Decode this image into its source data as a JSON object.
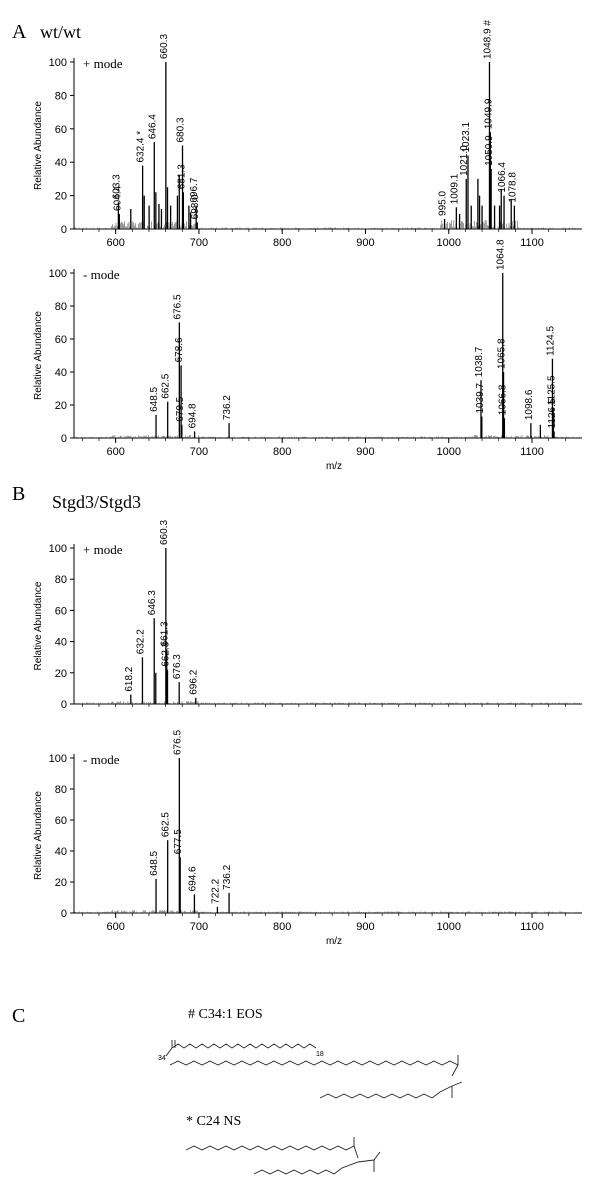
{
  "panels": {
    "a": {
      "letter": "A",
      "title": "wt/wt"
    },
    "b": {
      "letter": "B",
      "title": "Stgd3/Stgd3"
    },
    "c": {
      "letter": "C"
    }
  },
  "structures": {
    "eos_label": "# C34:1 EOS",
    "ns_label": "* C24 NS",
    "c18_sub": "18",
    "c34_sub": "34"
  },
  "chart_data": [
    {
      "type": "line",
      "panel": "A",
      "mode_label": "+ mode",
      "ylabel": "Relative Abundance",
      "xlabel": "",
      "xlim": [
        550,
        1160
      ],
      "ylim": [
        0,
        100
      ],
      "yticks": [
        0,
        20,
        40,
        60,
        80,
        100
      ],
      "xticks": [
        600,
        700,
        800,
        900,
        1000,
        1100
      ],
      "peaks": [
        {
          "mz": 603.3,
          "ab": 16,
          "label": "603.3"
        },
        {
          "mz": 604.4,
          "ab": 9,
          "label": "604.4"
        },
        {
          "mz": 618.2,
          "ab": 12
        },
        {
          "mz": 632.4,
          "ab": 38,
          "label": "632.4 *"
        },
        {
          "mz": 634.3,
          "ab": 20
        },
        {
          "mz": 640.2,
          "ab": 14
        },
        {
          "mz": 646.4,
          "ab": 52,
          "label": "646.4"
        },
        {
          "mz": 648.3,
          "ab": 22
        },
        {
          "mz": 652.0,
          "ab": 15
        },
        {
          "mz": 655.0,
          "ab": 12
        },
        {
          "mz": 660.3,
          "ab": 100,
          "label": "660.3"
        },
        {
          "mz": 662.3,
          "ab": 25
        },
        {
          "mz": 666.0,
          "ab": 14
        },
        {
          "mz": 674.2,
          "ab": 20
        },
        {
          "mz": 676.4,
          "ab": 32
        },
        {
          "mz": 680.3,
          "ab": 50,
          "label": "680.3"
        },
        {
          "mz": 681.3,
          "ab": 22,
          "label": "681.3"
        },
        {
          "mz": 688.0,
          "ab": 14
        },
        {
          "mz": 690.0,
          "ab": 10
        },
        {
          "mz": 696.7,
          "ab": 14,
          "label": "696.7"
        },
        {
          "mz": 698.0,
          "ab": 4,
          "label": "698.0"
        },
        {
          "mz": 995.0,
          "ab": 6,
          "label": "995.0"
        },
        {
          "mz": 1009.1,
          "ab": 13,
          "label": "1009.1"
        },
        {
          "mz": 1013.0,
          "ab": 9
        },
        {
          "mz": 1021.0,
          "ab": 30,
          "label": "1021.0"
        },
        {
          "mz": 1023.1,
          "ab": 44,
          "label": "1023.1"
        },
        {
          "mz": 1027.0,
          "ab": 14
        },
        {
          "mz": 1035.0,
          "ab": 30
        },
        {
          "mz": 1037.0,
          "ab": 20
        },
        {
          "mz": 1040.0,
          "ab": 14
        },
        {
          "mz": 1048.9,
          "ab": 100,
          "label": "1048.9 #"
        },
        {
          "mz": 1049.9,
          "ab": 58,
          "label": "1049.9"
        },
        {
          "mz": 1050.9,
          "ab": 36,
          "label": "1050.9"
        },
        {
          "mz": 1055.0,
          "ab": 14
        },
        {
          "mz": 1061.0,
          "ab": 14
        },
        {
          "mz": 1063.0,
          "ab": 24
        },
        {
          "mz": 1066.4,
          "ab": 20,
          "label": "1066.4"
        },
        {
          "mz": 1075.0,
          "ab": 18
        },
        {
          "mz": 1078.8,
          "ab": 14,
          "label": "1078.8"
        }
      ]
    },
    {
      "type": "line",
      "panel": "A",
      "mode_label": "- mode",
      "ylabel": "Relative Abundance",
      "xlabel": "m/z",
      "xlim": [
        550,
        1160
      ],
      "ylim": [
        0,
        100
      ],
      "yticks": [
        0,
        20,
        40,
        60,
        80,
        100
      ],
      "xticks": [
        600,
        700,
        800,
        900,
        1000,
        1100
      ],
      "peaks": [
        {
          "mz": 648.5,
          "ab": 14,
          "label": "648.5"
        },
        {
          "mz": 662.5,
          "ab": 22,
          "label": "662.5"
        },
        {
          "mz": 676.5,
          "ab": 70,
          "label": "676.5"
        },
        {
          "mz": 678.6,
          "ab": 44,
          "label": "678.6"
        },
        {
          "mz": 679.5,
          "ab": 8,
          "label": "679.5"
        },
        {
          "mz": 694.8,
          "ab": 4,
          "label": "694.8"
        },
        {
          "mz": 736.2,
          "ab": 9,
          "label": "736.2"
        },
        {
          "mz": 1038.7,
          "ab": 35,
          "label": "1038.7"
        },
        {
          "mz": 1039.7,
          "ab": 13,
          "label": "1039.7"
        },
        {
          "mz": 1064.8,
          "ab": 100,
          "label": "1064.8"
        },
        {
          "mz": 1065.8,
          "ab": 40,
          "label": "1065.8"
        },
        {
          "mz": 1066.8,
          "ab": 12,
          "label": "1066.8"
        },
        {
          "mz": 1098.6,
          "ab": 9,
          "label": "1098.6"
        },
        {
          "mz": 1110.0,
          "ab": 8
        },
        {
          "mz": 1124.5,
          "ab": 48,
          "label": "1124.5"
        },
        {
          "mz": 1125.5,
          "ab": 18,
          "label": "1125.5"
        },
        {
          "mz": 1126.5,
          "ab": 4,
          "label": "1126.5"
        }
      ]
    },
    {
      "type": "line",
      "panel": "B",
      "mode_label": "+ mode",
      "ylabel": "Relative Abundance",
      "xlabel": "",
      "xlim": [
        550,
        1160
      ],
      "ylim": [
        0,
        100
      ],
      "yticks": [
        0,
        20,
        40,
        60,
        80,
        100
      ],
      "xticks": [],
      "peaks": [
        {
          "mz": 618.2,
          "ab": 6,
          "label": "618.2"
        },
        {
          "mz": 632.2,
          "ab": 30,
          "label": "632.2"
        },
        {
          "mz": 646.3,
          "ab": 55,
          "label": "646.3"
        },
        {
          "mz": 648.2,
          "ab": 20
        },
        {
          "mz": 660.3,
          "ab": 100,
          "label": "660.3"
        },
        {
          "mz": 661.3,
          "ab": 35,
          "label": "661.3"
        },
        {
          "mz": 662.3,
          "ab": 22,
          "label": "662.3"
        },
        {
          "mz": 676.3,
          "ab": 14,
          "label": "676.3"
        },
        {
          "mz": 696.2,
          "ab": 4,
          "label": "696.2"
        }
      ]
    },
    {
      "type": "line",
      "panel": "B",
      "mode_label": "- mode",
      "ylabel": "Relative Abundance",
      "xlabel": "m/z",
      "xlim": [
        550,
        1160
      ],
      "ylim": [
        0,
        100
      ],
      "yticks": [
        0,
        20,
        40,
        60,
        80,
        100
      ],
      "xticks": [
        600,
        700,
        800,
        900,
        1000,
        1100
      ],
      "peaks": [
        {
          "mz": 648.5,
          "ab": 22,
          "label": "648.5"
        },
        {
          "mz": 662.5,
          "ab": 47,
          "label": "662.5"
        },
        {
          "mz": 676.5,
          "ab": 100,
          "label": "676.5"
        },
        {
          "mz": 677.5,
          "ab": 36,
          "label": "677.5"
        },
        {
          "mz": 694.6,
          "ab": 12,
          "label": "694.6"
        },
        {
          "mz": 722.2,
          "ab": 4,
          "label": "722.2"
        },
        {
          "mz": 736.2,
          "ab": 13,
          "label": "736.2"
        }
      ]
    }
  ]
}
